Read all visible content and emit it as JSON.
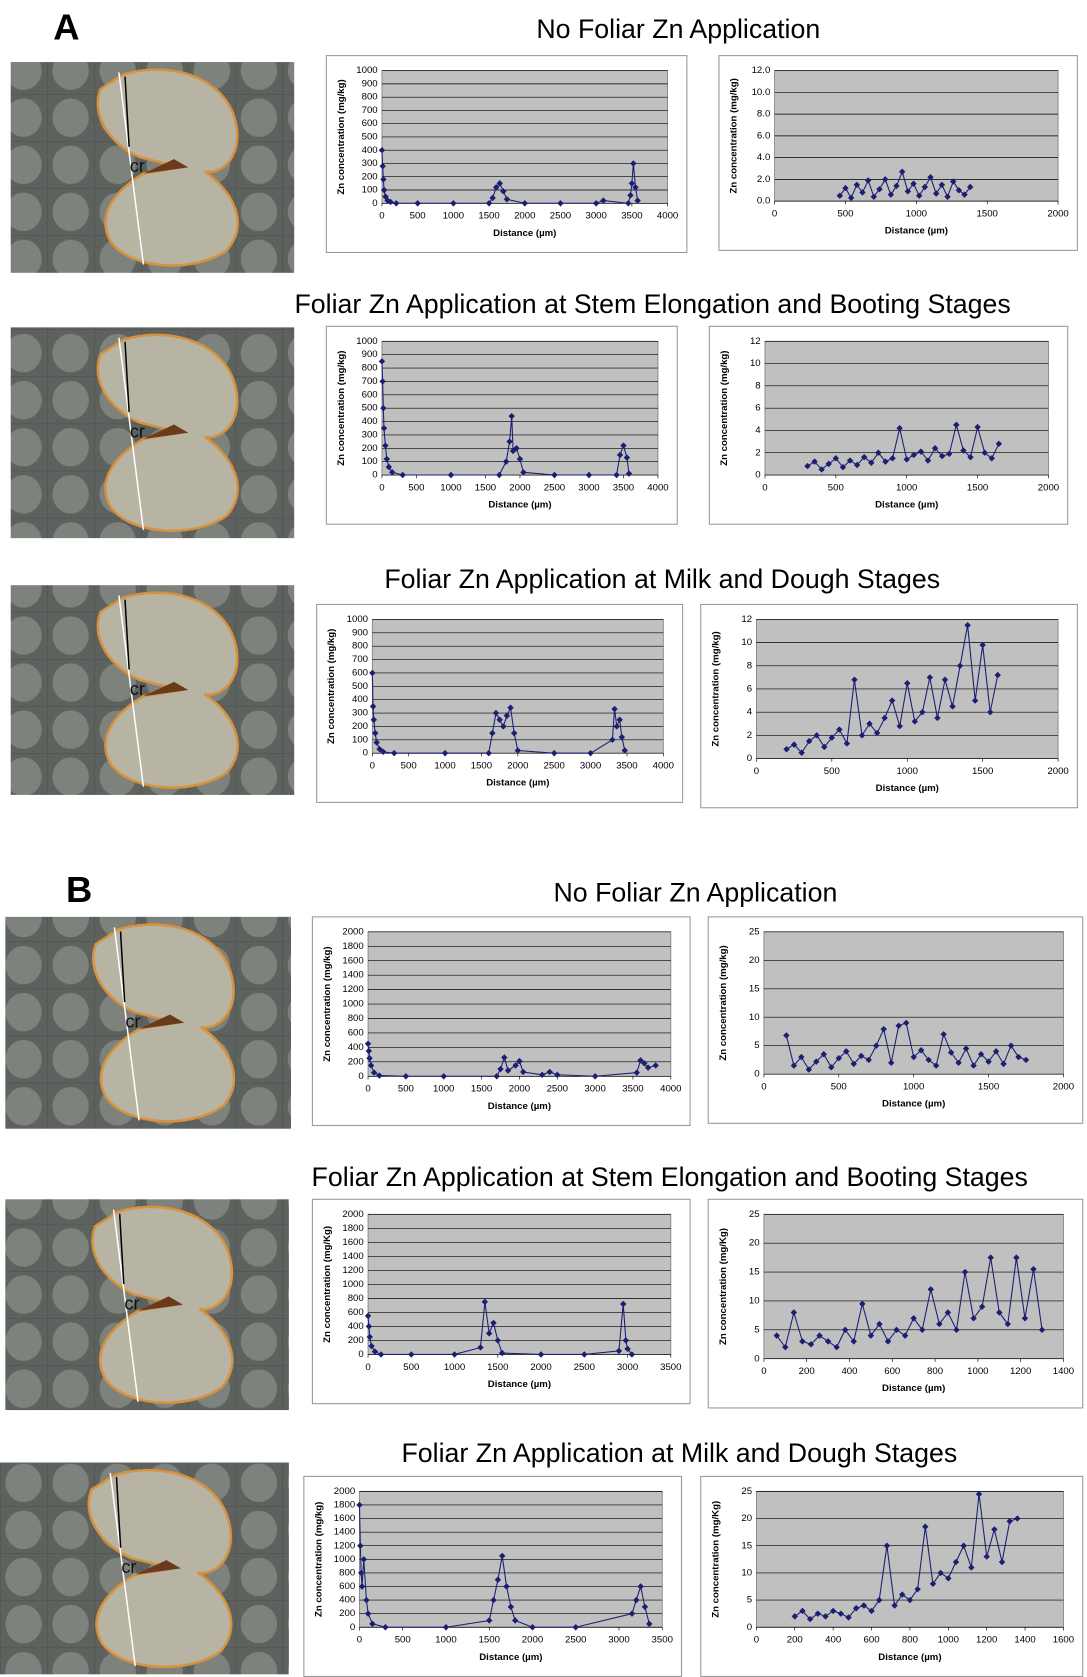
{
  "figure": {
    "panels": [
      {
        "label": "A"
      },
      {
        "label": "B"
      }
    ],
    "rows": [
      {
        "title": "No Foliar Zn Application",
        "micrograph_label": "cr"
      },
      {
        "title": "Foliar Zn Application at Stem Elongation  and Booting Stages",
        "micrograph_label": "cr"
      },
      {
        "title": "Foliar Zn Application at Milk  and Dough Stages",
        "micrograph_label": "cr"
      },
      {
        "title": "No Foliar Zn Application",
        "micrograph_label": "cr"
      },
      {
        "title": "Foliar Zn Application at Stem Elongation  and Booting Stages",
        "micrograph_label": "cr"
      },
      {
        "title": "Foliar Zn Application at Milk  and Dough Stages",
        "micrograph_label": "cr"
      }
    ]
  },
  "chart_data": [
    {
      "type": "line",
      "x_label": "Distance (µm)",
      "y_label": "Zn concentration (mg/kg)",
      "color": "#1a1f71",
      "grid": true,
      "x": [
        0,
        10,
        20,
        30,
        50,
        80,
        120,
        200,
        500,
        1000,
        1500,
        1550,
        1600,
        1650,
        1700,
        1750,
        2000,
        2500,
        3000,
        3100,
        3450,
        3480,
        3500,
        3520,
        3550,
        3580
      ],
      "values": [
        400,
        280,
        180,
        100,
        50,
        20,
        10,
        0,
        0,
        0,
        0,
        40,
        120,
        150,
        90,
        30,
        0,
        0,
        0,
        20,
        0,
        60,
        150,
        300,
        120,
        20
      ],
      "xlim": [
        0,
        4000
      ],
      "ylim": [
        0,
        1000
      ],
      "xticks": [
        0,
        500,
        1000,
        1500,
        2000,
        2500,
        3000,
        3500,
        4000
      ],
      "yticks": [
        0,
        100,
        200,
        300,
        400,
        500,
        600,
        700,
        800,
        900,
        1000
      ]
    },
    {
      "type": "line",
      "x_label": "Distance (µm)",
      "y_label": "Zn concentration (mg/kg)",
      "color": "#1a1f71",
      "grid": true,
      "x": [
        460,
        500,
        540,
        580,
        620,
        660,
        700,
        740,
        780,
        820,
        860,
        900,
        940,
        980,
        1020,
        1060,
        1100,
        1140,
        1180,
        1220,
        1260,
        1300,
        1340,
        1380
      ],
      "values": [
        0.5,
        1.2,
        0.3,
        1.5,
        0.8,
        1.9,
        0.4,
        1.1,
        2.0,
        0.6,
        1.4,
        2.7,
        0.9,
        1.6,
        0.5,
        1.3,
        2.2,
        0.7,
        1.5,
        0.4,
        1.8,
        1.0,
        0.6,
        1.3
      ],
      "xlim": [
        0,
        2000
      ],
      "ylim": [
        0,
        12
      ],
      "xticks": [
        0,
        500,
        1000,
        1500,
        2000
      ],
      "yticks": [
        {
          "value": 0,
          "label": "0.0"
        },
        {
          "value": 2,
          "label": "2.0"
        },
        {
          "value": 4,
          "label": "4.0"
        },
        {
          "value": 6,
          "label": "6.0"
        },
        {
          "value": 8,
          "label": "8.0"
        },
        {
          "value": 10,
          "label": "10.0"
        },
        {
          "value": 12,
          "label": "12.0"
        }
      ]
    },
    {
      "type": "line",
      "x_label": "Distance (µm)",
      "y_label": "Zn concentration (mg/kg)",
      "color": "#1a1f71",
      "grid": true,
      "x": [
        0,
        10,
        20,
        30,
        50,
        70,
        100,
        150,
        300,
        1000,
        1700,
        1800,
        1850,
        1880,
        1900,
        1950,
        2000,
        2050,
        2500,
        3000,
        3400,
        3450,
        3500,
        3550,
        3580
      ],
      "values": [
        850,
        700,
        500,
        350,
        220,
        120,
        60,
        20,
        0,
        0,
        0,
        100,
        250,
        440,
        180,
        200,
        120,
        20,
        0,
        0,
        0,
        150,
        220,
        130,
        10
      ],
      "xlim": [
        0,
        4000
      ],
      "ylim": [
        0,
        1000
      ],
      "xticks": [
        0,
        500,
        1000,
        1500,
        2000,
        2500,
        3000,
        3500,
        4000
      ],
      "yticks": [
        0,
        100,
        200,
        300,
        400,
        500,
        600,
        700,
        800,
        900,
        1000
      ]
    },
    {
      "type": "line",
      "x_label": "Distance (µm)",
      "y_label": "Zn concentration (mg/kg)",
      "color": "#1a1f71",
      "grid": true,
      "x": [
        300,
        350,
        400,
        450,
        500,
        550,
        600,
        650,
        700,
        750,
        800,
        850,
        900,
        950,
        1000,
        1050,
        1100,
        1150,
        1200,
        1250,
        1300,
        1350,
        1400,
        1450,
        1500,
        1550,
        1600,
        1650
      ],
      "values": [
        0.8,
        1.2,
        0.5,
        1.0,
        1.5,
        0.7,
        1.3,
        0.9,
        1.6,
        1.1,
        2.0,
        1.2,
        1.5,
        4.2,
        1.4,
        1.8,
        2.1,
        1.3,
        2.4,
        1.7,
        1.9,
        4.5,
        2.2,
        1.6,
        4.3,
        2.0,
        1.5,
        2.8
      ],
      "xlim": [
        0,
        2000
      ],
      "ylim": [
        0,
        12
      ],
      "xticks": [
        0,
        500,
        1000,
        1500,
        2000
      ],
      "yticks": [
        0,
        2,
        4,
        6,
        8,
        10,
        12
      ]
    },
    {
      "type": "line",
      "x_label": "Distance (µm)",
      "y_label": "Zn concentration (mg/kg)",
      "color": "#1a1f71",
      "grid": true,
      "x": [
        0,
        10,
        20,
        40,
        60,
        100,
        150,
        300,
        1000,
        1600,
        1650,
        1700,
        1750,
        1800,
        1850,
        1900,
        1950,
        2000,
        2500,
        3000,
        3300,
        3330,
        3360,
        3400,
        3430,
        3470
      ],
      "values": [
        600,
        350,
        250,
        150,
        80,
        30,
        10,
        0,
        0,
        0,
        150,
        300,
        250,
        200,
        280,
        340,
        150,
        20,
        0,
        0,
        100,
        330,
        200,
        250,
        120,
        20
      ],
      "xlim": [
        0,
        4000
      ],
      "ylim": [
        0,
        1000
      ],
      "xticks": [
        0,
        500,
        1000,
        1500,
        2000,
        2500,
        3000,
        3500,
        4000
      ],
      "yticks": [
        0,
        100,
        200,
        300,
        400,
        500,
        600,
        700,
        800,
        900,
        1000
      ]
    },
    {
      "type": "line",
      "x_label": "Distance (µm)",
      "y_label": "Zn concentration (mg/kg)",
      "color": "#1a1f71",
      "grid": true,
      "x": [
        200,
        250,
        300,
        350,
        400,
        450,
        500,
        550,
        600,
        650,
        700,
        750,
        800,
        850,
        900,
        950,
        1000,
        1050,
        1100,
        1150,
        1200,
        1250,
        1300,
        1350,
        1400,
        1450,
        1500,
        1550,
        1600
      ],
      "values": [
        0.8,
        1.2,
        0.5,
        1.5,
        2.0,
        1.0,
        1.8,
        2.5,
        1.3,
        6.8,
        2.0,
        3.0,
        2.2,
        3.5,
        5.0,
        2.8,
        6.5,
        3.2,
        4.0,
        7.0,
        3.5,
        6.8,
        4.5,
        8.0,
        11.5,
        5.0,
        9.8,
        4.0,
        7.2
      ],
      "xlim": [
        0,
        2000
      ],
      "ylim": [
        0,
        12
      ],
      "xticks": [
        0,
        500,
        1000,
        1500,
        2000
      ],
      "yticks": [
        0,
        2,
        4,
        6,
        8,
        10,
        12
      ]
    },
    {
      "type": "line",
      "x_label": "Distance (µm)",
      "y_label": "Zn concentration (mg/kg)",
      "color": "#1a1f71",
      "grid": true,
      "x": [
        0,
        10,
        20,
        40,
        80,
        150,
        500,
        1000,
        1700,
        1750,
        1800,
        1850,
        1950,
        2000,
        2050,
        2300,
        2400,
        2500,
        3000,
        3550,
        3600,
        3650,
        3700,
        3800
      ],
      "values": [
        450,
        350,
        250,
        150,
        50,
        10,
        0,
        0,
        0,
        100,
        260,
        80,
        150,
        210,
        60,
        20,
        60,
        20,
        0,
        50,
        220,
        180,
        120,
        150
      ],
      "xlim": [
        0,
        4000
      ],
      "ylim": [
        0,
        2000
      ],
      "xticks": [
        0,
        500,
        1000,
        1500,
        2000,
        2500,
        3000,
        3500,
        4000
      ],
      "yticks": [
        0,
        200,
        400,
        600,
        800,
        1000,
        1200,
        1400,
        1600,
        1800,
        2000
      ]
    },
    {
      "type": "line",
      "x_label": "Distance (µm)",
      "y_label": "Zn concentration (mg/kg)",
      "color": "#1a1f71",
      "grid": true,
      "x": [
        150,
        200,
        250,
        300,
        350,
        400,
        450,
        500,
        550,
        600,
        650,
        700,
        750,
        800,
        850,
        900,
        950,
        1000,
        1050,
        1100,
        1150,
        1200,
        1250,
        1300,
        1350,
        1400,
        1450,
        1500,
        1550,
        1600,
        1650,
        1700,
        1750
      ],
      "values": [
        6.8,
        1.5,
        3.0,
        0.8,
        2.2,
        3.5,
        1.2,
        2.8,
        4.0,
        1.8,
        3.2,
        2.5,
        5.0,
        7.9,
        2.0,
        8.5,
        9.0,
        3.0,
        4.2,
        2.5,
        1.5,
        7.0,
        3.8,
        2.0,
        4.5,
        1.5,
        3.5,
        2.2,
        4.0,
        1.8,
        5.0,
        3.0,
        2.5
      ],
      "xlim": [
        0,
        2000
      ],
      "ylim": [
        0,
        25
      ],
      "xticks": [
        0,
        500,
        1000,
        1500,
        2000
      ],
      "yticks": [
        0,
        5,
        10,
        15,
        20,
        25
      ]
    },
    {
      "type": "line",
      "x_label": "Distance (µm)",
      "y_label": "Zn concentration (mg/Kg)",
      "color": "#1a1f71",
      "grid": true,
      "x": [
        0,
        10,
        20,
        40,
        80,
        150,
        500,
        1000,
        1300,
        1350,
        1400,
        1450,
        1500,
        1550,
        2000,
        2500,
        2900,
        2950,
        2980,
        3000,
        3050
      ],
      "values": [
        550,
        400,
        250,
        120,
        40,
        0,
        0,
        0,
        100,
        750,
        300,
        450,
        200,
        20,
        0,
        0,
        50,
        720,
        200,
        80,
        0
      ],
      "xlim": [
        0,
        3500
      ],
      "ylim": [
        0,
        2000
      ],
      "xticks": [
        0,
        500,
        1000,
        1500,
        2000,
        2500,
        3000,
        3500
      ],
      "yticks": [
        0,
        200,
        400,
        600,
        800,
        1000,
        1200,
        1400,
        1600,
        1800,
        2000
      ]
    },
    {
      "type": "line",
      "x_label": "Distance (µm)",
      "y_label": "Zn concentration (mg/Kg)",
      "color": "#1a1f71",
      "grid": true,
      "x": [
        60,
        100,
        140,
        180,
        220,
        260,
        300,
        340,
        380,
        420,
        460,
        500,
        540,
        580,
        620,
        660,
        700,
        740,
        780,
        820,
        860,
        900,
        940,
        980,
        1020,
        1060,
        1100,
        1140,
        1180,
        1220,
        1260,
        1300
      ],
      "values": [
        4,
        2,
        8,
        3,
        2.5,
        4,
        3,
        2,
        5,
        3,
        9.5,
        4,
        6,
        3,
        5,
        4,
        7,
        5,
        12,
        6,
        8,
        5,
        15,
        7,
        9,
        17.5,
        8,
        6,
        17.5,
        7,
        15.5,
        5
      ],
      "xlim": [
        0,
        1400
      ],
      "ylim": [
        0,
        25
      ],
      "xticks": [
        0,
        200,
        400,
        600,
        800,
        1000,
        1200,
        1400
      ],
      "yticks": [
        0,
        5,
        10,
        15,
        20,
        25
      ]
    },
    {
      "type": "line",
      "x_label": "Distance (µm)",
      "y_label": "Zn concentration (mg/kg)",
      "color": "#1a1f71",
      "grid": true,
      "x": [
        0,
        10,
        20,
        30,
        50,
        80,
        100,
        150,
        300,
        1000,
        1500,
        1550,
        1600,
        1650,
        1700,
        1750,
        1800,
        2000,
        2500,
        3150,
        3200,
        3250,
        3300,
        3350
      ],
      "values": [
        1800,
        1200,
        800,
        600,
        1000,
        400,
        200,
        50,
        0,
        0,
        100,
        400,
        700,
        1050,
        600,
        300,
        100,
        0,
        0,
        200,
        400,
        600,
        300,
        50
      ],
      "xlim": [
        0,
        3500
      ],
      "ylim": [
        0,
        2000
      ],
      "xticks": [
        0,
        500,
        1000,
        1500,
        2000,
        2500,
        3000,
        3500
      ],
      "yticks": [
        0,
        200,
        400,
        600,
        800,
        1000,
        1200,
        1400,
        1600,
        1800,
        2000
      ]
    },
    {
      "type": "line",
      "x_label": "Distance (µm)",
      "y_label": "Zn concentration (mg/Kg)",
      "color": "#1a1f71",
      "grid": true,
      "x": [
        200,
        240,
        280,
        320,
        360,
        400,
        440,
        480,
        520,
        560,
        600,
        640,
        680,
        720,
        760,
        800,
        840,
        880,
        920,
        960,
        1000,
        1040,
        1080,
        1120,
        1160,
        1200,
        1240,
        1280,
        1320,
        1360
      ],
      "values": [
        2,
        3,
        1.5,
        2.5,
        2,
        3,
        2.5,
        1.8,
        3.5,
        4,
        3,
        5,
        15,
        4,
        6,
        5,
        7,
        18.5,
        8,
        10,
        9,
        12,
        15,
        11,
        24.5,
        13,
        18,
        12,
        19.5,
        20
      ],
      "xlim": [
        0,
        1600
      ],
      "ylim": [
        0,
        25
      ],
      "xticks": [
        0,
        200,
        400,
        600,
        800,
        1000,
        1200,
        1400,
        1600
      ],
      "yticks": [
        0,
        5,
        10,
        15,
        20,
        25
      ]
    }
  ]
}
